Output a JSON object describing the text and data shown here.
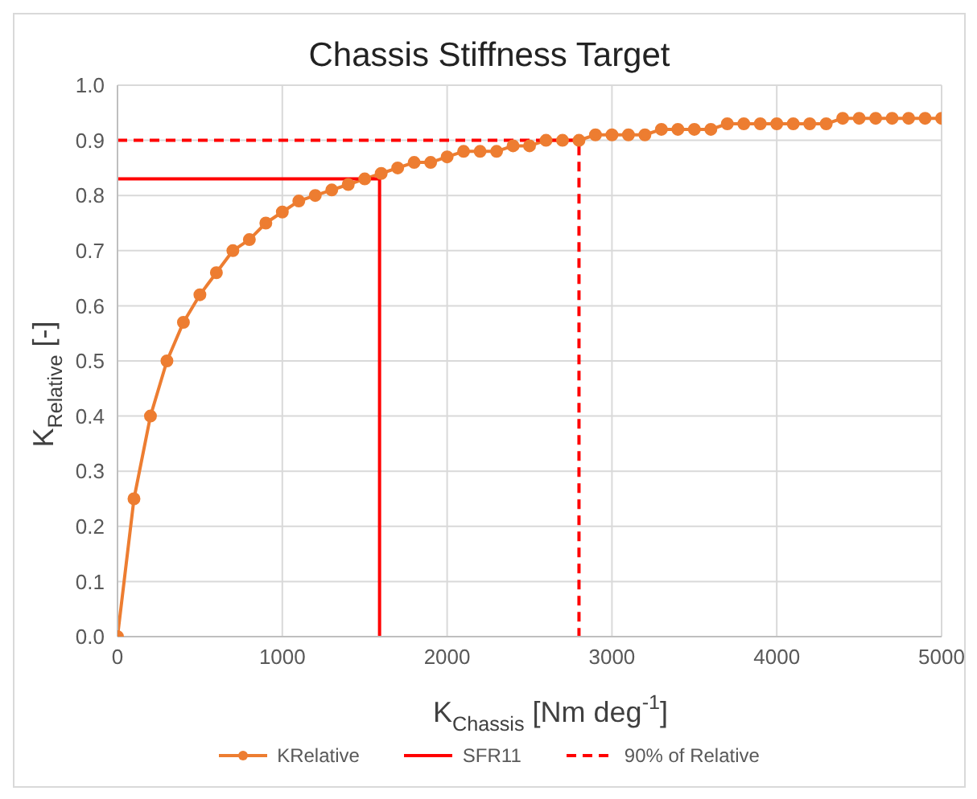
{
  "chart_data": {
    "type": "line",
    "title": "Chassis Stiffness Target",
    "xlabel": "K$_{Chassis}$ [Nm deg$^{-1}$]",
    "ylabel": "K$_{Relative}$ [-]",
    "xlim": [
      0,
      5000
    ],
    "xticks": [
      0,
      1000,
      2000,
      3000,
      4000,
      5000
    ],
    "ylim": [
      0,
      1
    ],
    "yticks": [
      {
        "value": 0,
        "label": "0.0"
      },
      {
        "value": 0.1,
        "label": "0.1"
      },
      {
        "value": 0.2,
        "label": "0.2"
      },
      {
        "value": 0.3,
        "label": "0.3"
      },
      {
        "value": 0.4,
        "label": "0.4"
      },
      {
        "value": 0.5,
        "label": "0.5"
      },
      {
        "value": 0.6,
        "label": "0.6"
      },
      {
        "value": 0.7,
        "label": "0.7"
      },
      {
        "value": 0.8,
        "label": "0.8"
      },
      {
        "value": 0.9,
        "label": "0.9"
      },
      {
        "value": 1,
        "label": "1.0"
      }
    ],
    "grid": true,
    "legend": "bottom",
    "series": [
      {
        "name": "KRelative",
        "color": "#ed7d31",
        "marker": "circle",
        "line_style": "solid",
        "x": [
          0,
          100,
          200,
          300,
          400,
          500,
          600,
          700,
          800,
          900,
          1000,
          1100,
          1200,
          1300,
          1400,
          1500,
          1600,
          1700,
          1800,
          1900,
          2000,
          2100,
          2200,
          2300,
          2400,
          2500,
          2600,
          2700,
          2800,
          2900,
          3000,
          3100,
          3200,
          3300,
          3400,
          3500,
          3600,
          3700,
          3800,
          3900,
          4000,
          4100,
          4200,
          4300,
          4400,
          4500,
          4600,
          4700,
          4800,
          4900,
          5000
        ],
        "values": [
          0,
          0.25,
          0.4,
          0.5,
          0.57,
          0.62,
          0.66,
          0.7,
          0.72,
          0.75,
          0.77,
          0.79,
          0.8,
          0.81,
          0.82,
          0.83,
          0.84,
          0.85,
          0.86,
          0.86,
          0.87,
          0.88,
          0.88,
          0.88,
          0.89,
          0.89,
          0.9,
          0.9,
          0.9,
          0.91,
          0.91,
          0.91,
          0.91,
          0.92,
          0.92,
          0.92,
          0.92,
          0.93,
          0.93,
          0.93,
          0.93,
          0.93,
          0.93,
          0.93,
          0.94,
          0.94,
          0.94,
          0.94,
          0.94,
          0.94,
          0.94
        ]
      },
      {
        "name": "SFR11",
        "color": "#ff0000",
        "marker": "none",
        "line_style": "solid",
        "x": [
          0,
          1590,
          1590
        ],
        "values": [
          0.83,
          0.83,
          0
        ]
      },
      {
        "name": "90% of Relative",
        "color": "#ff0000",
        "marker": "none",
        "line_style": "dashed",
        "x": [
          0,
          2800,
          2800
        ],
        "values": [
          0.9,
          0.9,
          0
        ]
      }
    ]
  }
}
